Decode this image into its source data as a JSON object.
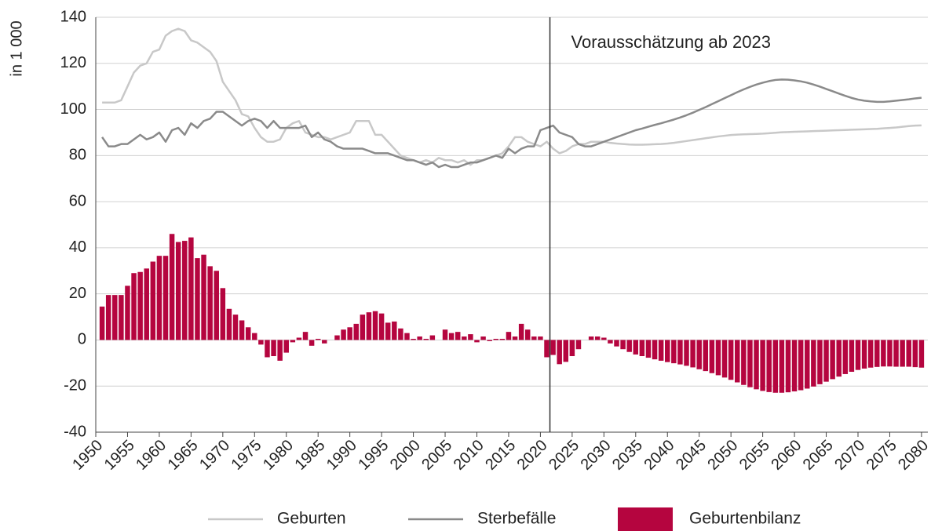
{
  "chart_data": {
    "type": "bar",
    "y_label": "in 1 000",
    "annotation": {
      "text": "Vorausschätzung ab 2023",
      "x": 2021.5
    },
    "x": [
      1951,
      1952,
      1953,
      1954,
      1955,
      1956,
      1957,
      1958,
      1959,
      1960,
      1961,
      1962,
      1963,
      1964,
      1965,
      1966,
      1967,
      1968,
      1969,
      1970,
      1971,
      1972,
      1973,
      1974,
      1975,
      1976,
      1977,
      1978,
      1979,
      1980,
      1981,
      1982,
      1983,
      1984,
      1985,
      1986,
      1987,
      1988,
      1989,
      1990,
      1991,
      1992,
      1993,
      1994,
      1995,
      1996,
      1997,
      1998,
      1999,
      2000,
      2001,
      2002,
      2003,
      2004,
      2005,
      2006,
      2007,
      2008,
      2009,
      2010,
      2011,
      2012,
      2013,
      2014,
      2015,
      2016,
      2017,
      2018,
      2019,
      2020,
      2021,
      2022,
      2023,
      2024,
      2025,
      2026,
      2027,
      2028,
      2029,
      2030,
      2031,
      2032,
      2033,
      2034,
      2035,
      2036,
      2037,
      2038,
      2039,
      2040,
      2041,
      2042,
      2043,
      2044,
      2045,
      2046,
      2047,
      2048,
      2049,
      2050,
      2051,
      2052,
      2053,
      2054,
      2055,
      2056,
      2057,
      2058,
      2059,
      2060,
      2061,
      2062,
      2063,
      2064,
      2065,
      2066,
      2067,
      2068,
      2069,
      2070,
      2071,
      2072,
      2073,
      2074,
      2075,
      2076,
      2077,
      2078,
      2079,
      2080
    ],
    "series": [
      {
        "name": "Geburten",
        "type": "line",
        "color": "#c8c8c8",
        "values": [
          103,
          103,
          103,
          104,
          110,
          116,
          119,
          120,
          125,
          126,
          132,
          134,
          135,
          134,
          130,
          129,
          127,
          125,
          121,
          112,
          108,
          104,
          98,
          97,
          92,
          88,
          86,
          86,
          87,
          92,
          94,
          95,
          90,
          89,
          88,
          88,
          87,
          88,
          89,
          90,
          95,
          95,
          95,
          89,
          89,
          86,
          83,
          80,
          79,
          78,
          77,
          78,
          77,
          79,
          78,
          78,
          77,
          78,
          76,
          78,
          78,
          79,
          80,
          81,
          84,
          88,
          88,
          86,
          85,
          84,
          86,
          83,
          81,
          82,
          84,
          85,
          85,
          86,
          86,
          86,
          85.5,
          85.2,
          85,
          84.8,
          84.7,
          84.7,
          84.8,
          84.9,
          85,
          85.2,
          85.5,
          85.9,
          86.3,
          86.7,
          87.1,
          87.5,
          87.9,
          88.3,
          88.6,
          88.9,
          89.1,
          89.2,
          89.3,
          89.4,
          89.5,
          89.7,
          89.9,
          90.1,
          90.2,
          90.3,
          90.4,
          90.5,
          90.6,
          90.7,
          90.8,
          90.9,
          91,
          91.1,
          91.2,
          91.3,
          91.4,
          91.5,
          91.6,
          91.8,
          92,
          92.2,
          92.5,
          92.8,
          93,
          93.1
        ]
      },
      {
        "name": "Sterbefälle",
        "type": "line",
        "color": "#8a8a8a",
        "values": [
          88,
          84,
          84,
          85,
          85,
          87,
          89,
          87,
          88,
          90,
          86,
          91,
          92,
          89,
          94,
          92,
          95,
          96,
          99,
          99,
          97,
          95,
          93,
          95,
          96,
          95,
          92,
          95,
          92,
          92,
          92,
          92,
          93,
          88,
          90,
          87,
          86,
          84,
          83,
          83,
          83,
          83,
          82,
          81,
          81,
          81,
          80,
          79,
          78,
          78,
          77,
          76,
          77,
          75,
          76,
          75,
          75,
          76,
          77,
          77,
          78,
          79,
          80,
          79,
          83,
          81,
          83,
          84,
          84,
          91,
          92,
          93,
          90,
          89,
          88,
          85,
          84,
          84,
          85,
          86,
          87,
          88,
          89,
          90,
          91,
          91.7,
          92.5,
          93.3,
          94,
          94.8,
          95.6,
          96.5,
          97.5,
          98.6,
          99.8,
          101,
          102.3,
          103.6,
          104.9,
          106.2,
          107.5,
          108.7,
          109.8,
          110.8,
          111.6,
          112.3,
          112.8,
          113,
          112.9,
          112.6,
          112.2,
          111.6,
          110.8,
          109.9,
          108.9,
          107.9,
          106.9,
          105.9,
          105,
          104.3,
          103.8,
          103.5,
          103.3,
          103.3,
          103.5,
          103.8,
          104.1,
          104.4,
          104.8,
          105.1
        ]
      },
      {
        "name": "Geburtenbilanz",
        "type": "bar",
        "color": "#b5053f",
        "values": [
          14.5,
          19.5,
          19.5,
          19.5,
          23.5,
          29,
          29.5,
          31,
          34,
          36.5,
          36.5,
          46,
          42.5,
          43,
          44.5,
          35.5,
          37,
          32,
          30,
          22.5,
          13.5,
          11,
          8.5,
          5.5,
          3,
          -2,
          -7.5,
          -7,
          -9,
          -5.5,
          -1,
          1,
          3.5,
          -2.5,
          0.5,
          -1.5,
          0,
          2,
          4.5,
          5.5,
          7,
          11,
          12,
          12.5,
          11.5,
          7.5,
          8,
          5,
          3,
          0.5,
          1.5,
          0.5,
          2,
          0,
          4.5,
          3,
          3.5,
          1.5,
          2.5,
          -1,
          1.5,
          -0.5,
          0.5,
          0.5,
          3.5,
          1.5,
          7,
          4.5,
          1.5,
          1.5,
          -7.5,
          -6.5,
          -10.5,
          -9.5,
          -7,
          -4,
          0,
          1.5,
          1.5,
          1,
          -1.5,
          -2.8,
          -4,
          -5.2,
          -6.3,
          -7,
          -7.7,
          -8.4,
          -9,
          -9.6,
          -10.1,
          -10.6,
          -11.2,
          -11.9,
          -12.7,
          -13.5,
          -14.4,
          -15.3,
          -16.3,
          -17.3,
          -18.4,
          -19.5,
          -20.5,
          -21.4,
          -22.1,
          -22.6,
          -22.9,
          -22.9,
          -22.7,
          -22.3,
          -21.8,
          -21.1,
          -20.2,
          -19.2,
          -18.1,
          -17,
          -15.9,
          -14.8,
          -13.8,
          -13,
          -12.4,
          -12,
          -11.7,
          -11.5,
          -11.5,
          -11.6,
          -11.6,
          -11.6,
          -11.8,
          -12
        ]
      }
    ],
    "xlim": [
      1950,
      2081
    ],
    "xticks": [
      1950,
      1955,
      1960,
      1965,
      1970,
      1975,
      1980,
      1985,
      1990,
      1995,
      2000,
      2005,
      2010,
      2015,
      2020,
      2025,
      2030,
      2035,
      2040,
      2045,
      2050,
      2055,
      2060,
      2065,
      2070,
      2075,
      2080
    ],
    "ylim": [
      -40,
      140
    ],
    "yticks": [
      -40,
      -20,
      0,
      20,
      40,
      60,
      80,
      100,
      120,
      140
    ],
    "grid": true,
    "legend": "bottom"
  }
}
